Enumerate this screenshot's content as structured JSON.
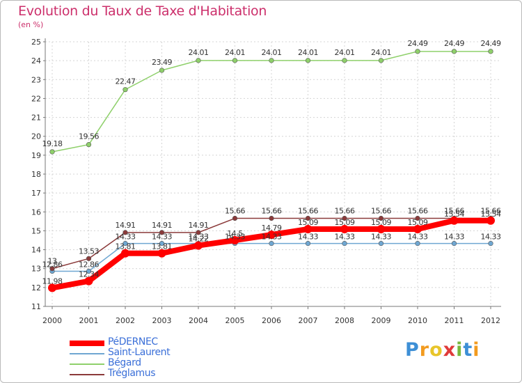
{
  "chart_data": {
    "type": "line",
    "title": "Evolution du Taux de Taxe d'Habitation",
    "subtitle": "(en %)",
    "x": [
      "2000",
      "2001",
      "2002",
      "2003",
      "2004",
      "2005",
      "2006",
      "2007",
      "2008",
      "2009",
      "2010",
      "2011",
      "2012"
    ],
    "ylim": [
      11,
      25
    ],
    "yticks": [
      11,
      12,
      13,
      14,
      15,
      16,
      17,
      18,
      19,
      20,
      21,
      22,
      23,
      24,
      25
    ],
    "grid": true,
    "legend_position": "bottom-left",
    "series": [
      {
        "name": "PéDERNEC",
        "color": "#ff0000",
        "values": [
          11.98,
          12.34,
          13.81,
          13.81,
          14.22,
          14.5,
          14.79,
          15.09,
          15.09,
          15.09,
          15.09,
          15.54,
          15.54
        ],
        "labels": [
          "11.98",
          "12.34",
          "13.81",
          "13.81",
          "14.22",
          "14.5",
          "14.79",
          "15.09",
          "15.09",
          "15.09",
          "15.09",
          "15.54",
          "15.54"
        ]
      },
      {
        "name": "Saint-Laurent",
        "color": "#6fa7d2",
        "values": [
          12.86,
          12.86,
          14.33,
          14.33,
          14.33,
          14.33,
          14.33,
          14.33,
          14.33,
          14.33,
          14.33,
          14.33,
          14.33
        ],
        "labels": [
          "12.86",
          "12.86",
          "14.33",
          "14.33",
          "14.33",
          "14.33",
          "14.33",
          "14.33",
          "14.33",
          "14.33",
          "14.33",
          "14.33",
          "14.33"
        ]
      },
      {
        "name": "Bégard",
        "color": "#8fd06b",
        "values": [
          19.18,
          19.56,
          22.47,
          23.49,
          24.01,
          24.01,
          24.01,
          24.01,
          24.01,
          24.01,
          24.49,
          24.49,
          24.49
        ],
        "labels": [
          "19.18",
          "19.56",
          "22.47",
          "23.49",
          "24.01",
          "24.01",
          "24.01",
          "24.01",
          "24.01",
          "24.01",
          "24.49",
          "24.49",
          "24.49"
        ]
      },
      {
        "name": "Tréglamus",
        "color": "#8b3a3a",
        "values": [
          13,
          13.53,
          14.91,
          14.91,
          14.91,
          15.66,
          15.66,
          15.66,
          15.66,
          15.66,
          15.66,
          15.66,
          15.66
        ],
        "labels": [
          "13",
          "13.53",
          "14.91",
          "14.91",
          "14.91",
          "15.66",
          "15.66",
          "15.66",
          "15.66",
          "15.66",
          "15.66",
          "15.66",
          "15.66"
        ]
      }
    ]
  },
  "logo": {
    "letters": [
      "P",
      "r",
      "o",
      "x",
      "i",
      "t",
      "i"
    ],
    "colors": [
      "#3d8fd6",
      "#f29b1f",
      "#e8c52a",
      "#e03a3a",
      "#79b83c",
      "#3d8fd6",
      "#f29b1f"
    ]
  }
}
